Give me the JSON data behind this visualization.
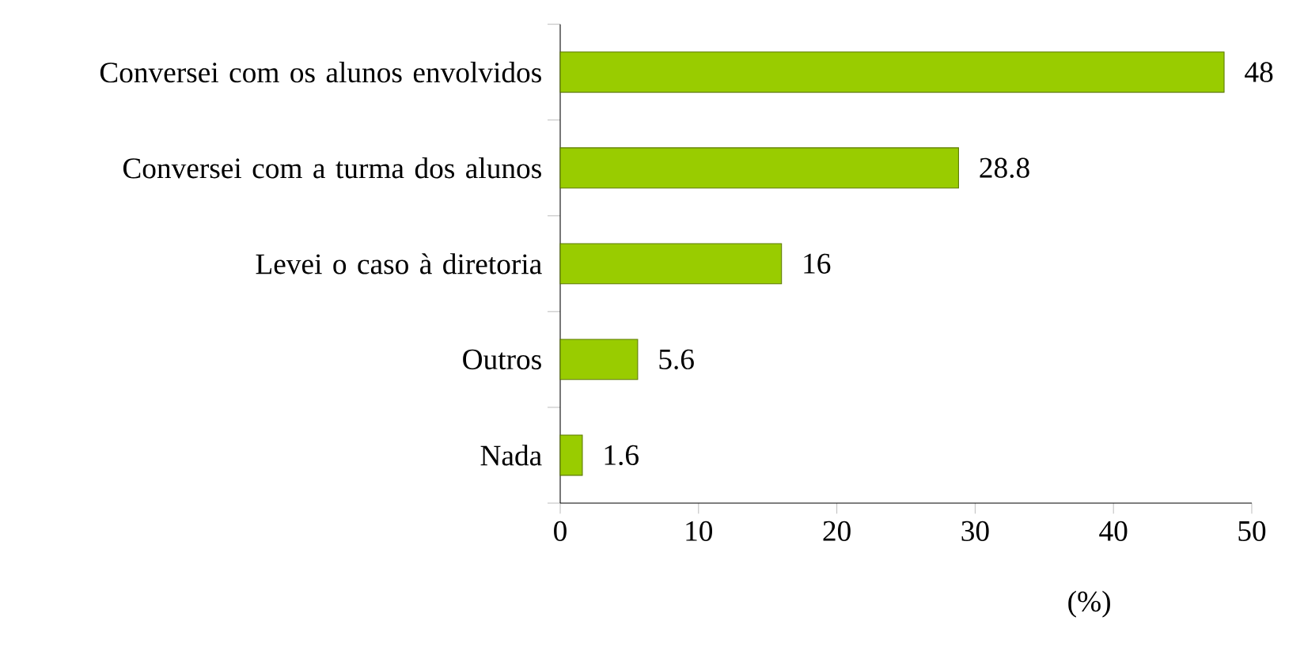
{
  "chart_data": {
    "type": "bar",
    "orientation": "horizontal",
    "categories": [
      "Conversei com os alunos envolvidos",
      "Conversei com a turma dos alunos",
      "Levei o caso à diretoria",
      "Outros",
      "Nada"
    ],
    "values": [
      48,
      28.8,
      16,
      5.6,
      1.6
    ],
    "color": "#99cc00",
    "xlim": [
      0,
      50
    ],
    "xticks": [
      0,
      10,
      20,
      30,
      40,
      50
    ],
    "xlabel": "(%)",
    "data_labels": true,
    "grid": false
  }
}
